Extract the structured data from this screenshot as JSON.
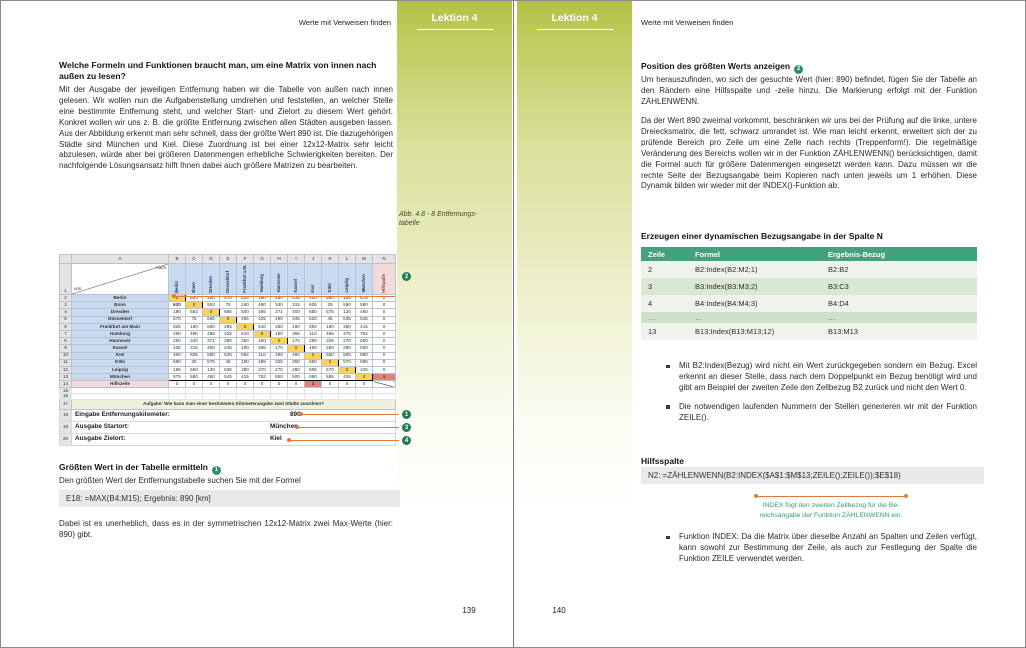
{
  "header": {
    "running_title": "Werte mit Verweisen finden",
    "lesson_label": "Lektion 4"
  },
  "pages": {
    "left_number": "139",
    "right_number": "140"
  },
  "left_page": {
    "heading": "Welche Formeln und Funktionen braucht man, um eine Matrix von innen nach außen zu lesen?",
    "intro": "Mit der Ausgabe der jeweiligen Entfernung haben wir die Tabelle von außen nach innen gelesen. Wir wollen nun die Aufgabenstellung umdrehen und feststellen, an welcher Stelle eine bestimmte Entfernung steht, und welcher Start- und Zielort zu diesem Wert gehört. Konkret wollen wir uns z. B. die größte Entfernung zwischen allen Städten ausgeben lassen. Aus der Abbildung erkennt man sehr schnell, dass der größte Wert 890 ist. Die dazugehörigen Städte sind München und Kiel. Diese Zuordnung ist bei einer 12x12-Matrix sehr leicht abzulesen, würde aber bei größeren Datenmengen erhebliche Schwierigkeiten bereiten. Der nachfolgende Lösungsansatz hilft Ihnen dabei auch größere Matrizen zu bearbeiten.",
    "figure_caption_line1": "Abb. 4.8 - 8 Entfernungs-",
    "figure_caption_line2": "tabelle",
    "spreadsheet": {
      "col_letters": [
        "A",
        "B",
        "C",
        "D",
        "E",
        "F",
        "G",
        "H",
        "I",
        "J",
        "K",
        "L",
        "M",
        "N"
      ],
      "corner_top": "nach",
      "corner_bottom": "von",
      "col_headers": [
        "Berlin",
        "Bonn",
        "Dresden",
        "Düsseldorf",
        "Frankfurt a.M.",
        "Hamburg",
        "Hannover",
        "Kassel",
        "Kiel",
        "Köln",
        "Leipzig",
        "München",
        "Hilfspalte"
      ],
      "rows": [
        {
          "num": 2,
          "label": "Berlin",
          "values": [
            0,
            620,
            180,
            570,
            525,
            290,
            250,
            435,
            400,
            590,
            165,
            675
          ],
          "helper": 0
        },
        {
          "num": 3,
          "label": "Bonn",
          "values": [
            620,
            0,
            553,
            75,
            190,
            490,
            340,
            315,
            605,
            25,
            550,
            580
          ],
          "helper": 0
        },
        {
          "num": 4,
          "label": "Dresden",
          "values": [
            180,
            553,
            0,
            665,
            500,
            485,
            371,
            400,
            580,
            575,
            120,
            460
          ],
          "helper": 0
        },
        {
          "num": 5,
          "label": "Düsseldorf",
          "values": [
            570,
            75,
            665,
            0,
            265,
            425,
            290,
            345,
            520,
            45,
            635,
            545
          ],
          "helper": 0
        },
        {
          "num": 6,
          "label": "Frankfurt am Main",
          "values": [
            525,
            190,
            500,
            265,
            0,
            510,
            250,
            190,
            592,
            190,
            380,
            415
          ],
          "helper": 0
        },
        {
          "num": 7,
          "label": "Hamburg",
          "values": [
            290,
            490,
            485,
            425,
            510,
            0,
            180,
            365,
            110,
            485,
            370,
            752
          ],
          "helper": 0
        },
        {
          "num": 8,
          "label": "Hannover",
          "values": [
            250,
            340,
            371,
            290,
            350,
            180,
            0,
            170,
            290,
            325,
            270,
            650
          ],
          "helper": 0
        },
        {
          "num": 9,
          "label": "Kassel",
          "values": [
            435,
            315,
            400,
            245,
            190,
            365,
            170,
            0,
            460,
            250,
            280,
            500
          ],
          "helper": 0
        },
        {
          "num": 10,
          "label": "Kiel",
          "values": [
            400,
            605,
            580,
            520,
            592,
            110,
            290,
            460,
            0,
            550,
            505,
            890
          ],
          "helper": 0
        },
        {
          "num": 11,
          "label": "Köln",
          "values": [
            590,
            25,
            575,
            45,
            190,
            485,
            325,
            250,
            550,
            0,
            570,
            595
          ],
          "helper": 0
        },
        {
          "num": 12,
          "label": "Leipzig",
          "values": [
            165,
            550,
            120,
            635,
            380,
            370,
            270,
            280,
            505,
            570,
            0,
            425
          ],
          "helper": 0
        },
        {
          "num": 13,
          "label": "München",
          "values": [
            675,
            580,
            460,
            545,
            415,
            752,
            650,
            500,
            890,
            595,
            425,
            0
          ],
          "helper": 1
        }
      ],
      "helper_row": {
        "num": 14,
        "label": "Hilfszeile",
        "values": [
          0,
          0,
          0,
          0,
          0,
          0,
          0,
          0,
          1,
          0,
          0,
          0
        ],
        "highlight_index": 8
      },
      "empty_row_nums": [
        15,
        16
      ],
      "aufgabe_row": {
        "num": 17,
        "text": "Aufgabe: Wie kann man einer bestimmten Kilometerangabe zwei Städte zuordnen?"
      },
      "input_rows": [
        {
          "num": 18,
          "label": "Eingabe Entfernungskilometer:",
          "value": "890",
          "marker": "1"
        },
        {
          "num": 19,
          "label": "Ausgabe Startort:",
          "value": "München",
          "marker": "3"
        },
        {
          "num": 20,
          "label": "Ausgabe Zielort:",
          "value": "Kiel",
          "marker": "4"
        }
      ]
    },
    "section2": {
      "heading": "Größten Wert in der Tabelle ermitteln",
      "marker": "1",
      "body": "Den größten Wert der Entfernungstabelle suchen Sie mit der Formel",
      "code": "E18: =MAX(B4:M15); Ergebnis: 890 [km]",
      "after": "Dabei ist es unerheblich, dass es in der symmetrischen 12x12-Matrix zwei Max-Werte (hier: 890) gibt."
    }
  },
  "right_page": {
    "heading": "Position des größten Werts anzeigen",
    "marker": "2",
    "para1": "Um herauszufinden, wo sich der gesuchte Wert (hier: 890) befindet, fügen Sie der Tabelle an den Rändern eine Hilfsspalte und -zeile hinzu. Die Markierung erfolgt mit der Funktion ZÄHLENWENN.",
    "para2": "Da der Wert 890 zweimal vorkommt, beschränken wir uns bei der Prüfung auf die linke, untere Dreiecksmatrix, die fett, schwarz umrandet ist. Wie man leicht erkennt, erweitert sich der zu prüfende Bereich pro Zeile um eine Zelle nach rechts (Treppenform!). Die regelmäßige Veränderung des Bereichs wollen wir in der Funktion ZÄHLENWENN() berücksichtigen, damit die Formel auch für größere Datenmengen eingesetzt werden kann. Dazu müssen wir die rechte Seite der Bezugsangabe beim Kopieren nach unten jeweils um 1 erhöhen. Diese Dynamik bilden wir wieder mit der INDEX()-Funktion ab:",
    "table_heading": "Erzeugen einer dynamischen Bezugsangabe in der Spalte N",
    "ref_table": {
      "headers": [
        "Zeile",
        "Formel",
        "Ergebnis-Bezug"
      ],
      "rows": [
        [
          "2",
          "B2:Index(B2:M2;1)",
          "B2:B2"
        ],
        [
          "3",
          "B3:Index(B3:M3;2)",
          "B3:C3"
        ],
        [
          "4",
          "B4:Index(B4:M4;3)",
          "B4:D4"
        ],
        [
          "…",
          "…",
          "…"
        ],
        [
          "13",
          "B13:Index(B13:M13;12)",
          "B13:M13"
        ]
      ]
    },
    "bullets": [
      "Mit B2:Index(Bezug) wird nicht ein Wert zurückgegeben sondern ein Bezug. Excel erkennt an dieser Stelle, dass nach dem Doppelpunkt ein Bezug benötigt wird und gibt am Beispiel der zweiten Zeile den Zellbezug B2 zurück und nicht den Wert 0.",
      "Die notwendigen laufenden Nummern der Stellen generieren wir mit der Funktion ZEILE()."
    ],
    "hilfsspalte_heading": "Hilfsspalte",
    "code": "N2: =ZÄHLENWENN(B2:INDEX($A$1:$M$13;ZEILE();ZEILE());$E$18)",
    "annotation_line1": "INDEX fügt den zweiten Zellbezug für die Be-",
    "annotation_line2": "reichsangabe der Funktion ZÄHLENWENN ein.",
    "bullet3": "Funktion INDEX: Da die Matrix über dieselbe Anzahl an Spalten und Zeilen verfügt, kann sowohl zur Bestimmung der Zeile, als auch zur Festlegung der Spalte die Funktion ZEILE verwendet werden."
  },
  "colors": {
    "lesson_green": "#b2c146",
    "table_header_green": "#43a17c",
    "annotation_green": "#2f9e72",
    "marker_green": "#1e7a5f",
    "arrow_orange": "#dd7a3c",
    "diagonal_gold": "#fbd25c",
    "highlight_red": "#e0837d",
    "excel_header_blue": "#c9daf0",
    "helper_pink": "#f2dcdb",
    "codebox_gray": "#e9e9e9"
  }
}
